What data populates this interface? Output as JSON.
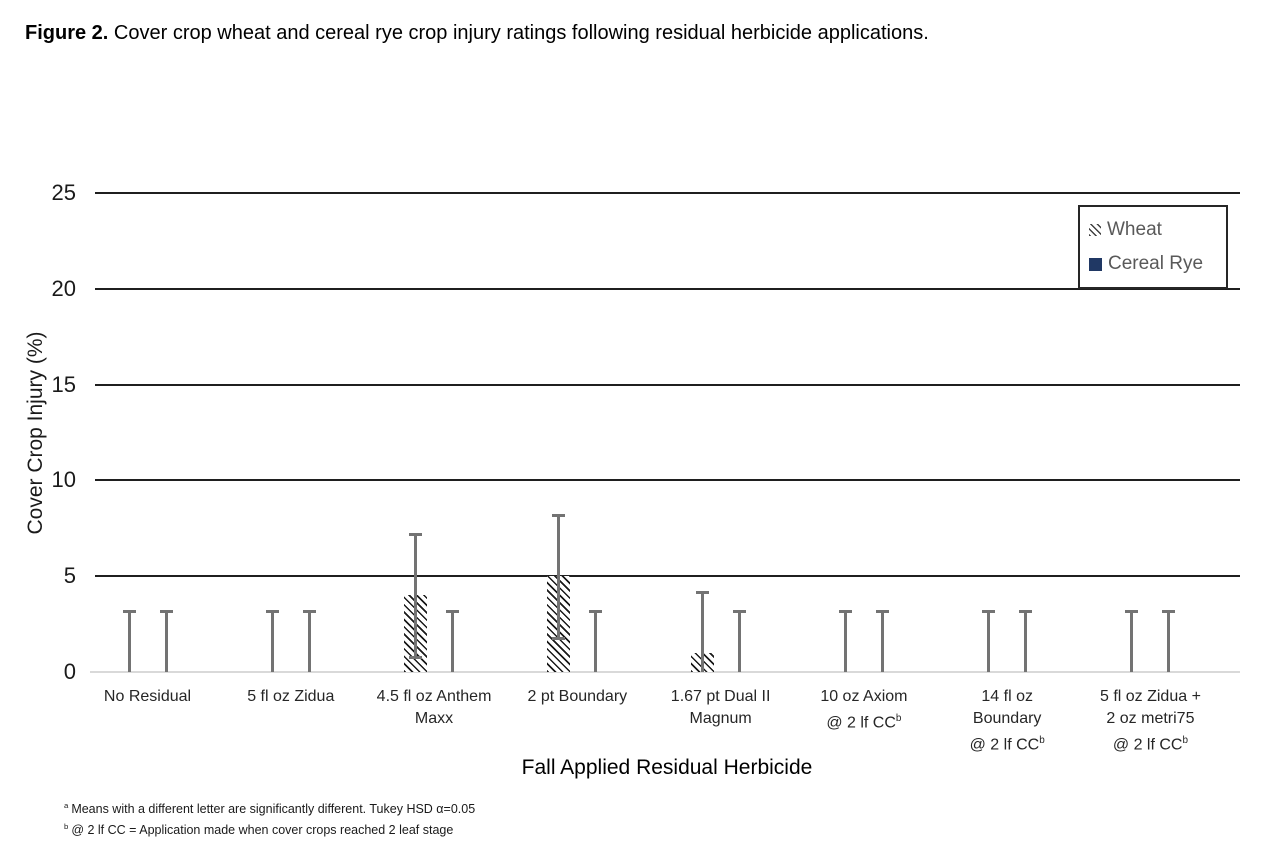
{
  "figure_caption": {
    "prefix": "Figure 2.",
    "text": "Cover crop wheat and cereal rye crop injury ratings following residual herbicide applications."
  },
  "chart_data": {
    "type": "bar",
    "title": "",
    "xlabel": "Fall Applied Residual Herbicide",
    "ylabel": "Cover Crop Injury (%)",
    "ylim": [
      0,
      25
    ],
    "yticks": [
      0,
      5,
      10,
      15,
      20,
      25
    ],
    "grid": "horizontal",
    "legend_position": "top-right",
    "categories": [
      "No Residual",
      "5 fl oz Zidua",
      "4.5 fl oz Anthem\nMaxx",
      "2 pt Boundary",
      "1.67 pt Dual II\nMagnum",
      "10 oz Axiom\n@ 2 lf CC^b",
      "14 fl oz\nBoundary\n@ 2 lf CC^b",
      "5 fl oz Zidua +\n2 oz metri75\n@ 2 lf CC^b"
    ],
    "series": [
      {
        "name": "Wheat",
        "values": [
          0,
          0,
          4,
          5,
          1,
          0,
          0,
          0
        ],
        "style": "hatch",
        "color": "#1a1a1a"
      },
      {
        "name": "Cereal Rye",
        "values": [
          0,
          0,
          0,
          0,
          0,
          0,
          0,
          0
        ],
        "style": "solid",
        "color": "#203864"
      }
    ],
    "error_bars": {
      "plus_minus": 3.2,
      "color": "#737373"
    }
  },
  "footnotes": [
    {
      "sup": "a",
      "text": "Means with a different letter are significantly different.  Tukey HSD α=0.05"
    },
    {
      "sup": "b",
      "text": "@ 2 lf CC = Application made when cover crops reached 2 leaf stage"
    }
  ]
}
